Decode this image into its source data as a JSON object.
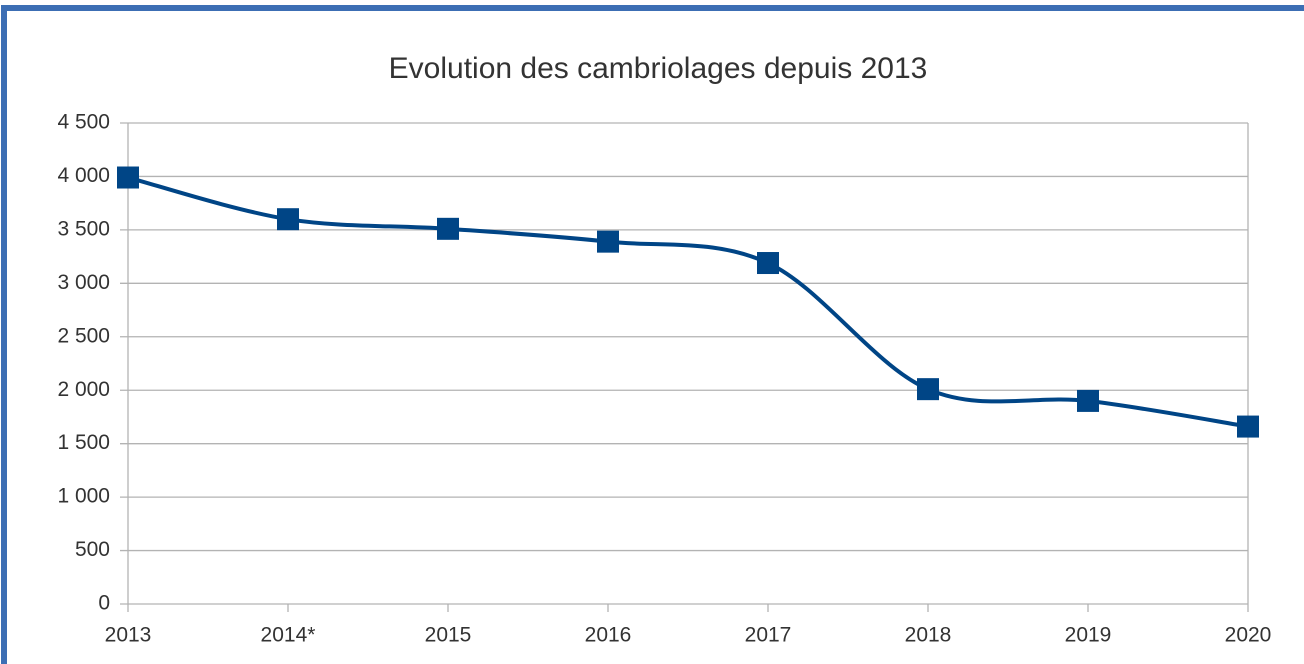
{
  "chart_data": {
    "type": "line",
    "title": "Evolution des cambriolages depuis 2013",
    "categories": [
      "2013",
      "2014*",
      "2015",
      "2016",
      "2017",
      "2018",
      "2019",
      "2020"
    ],
    "series": [
      {
        "name": "Cambriolages",
        "color": "#004586",
        "values": [
          3990,
          3600,
          3510,
          3390,
          3190,
          2010,
          1900,
          1660
        ]
      }
    ],
    "ylim": [
      0,
      4500
    ],
    "yticks": [
      0,
      500,
      {
        "value": 1000,
        "label": "1 000"
      },
      {
        "value": 1500,
        "label": "1 500"
      },
      {
        "value": 2000,
        "label": "2 000"
      },
      {
        "value": 2500,
        "label": "2 500"
      },
      {
        "value": 3000,
        "label": "3 000"
      },
      {
        "value": 3500,
        "label": "3 500"
      },
      {
        "value": 4000,
        "label": "4 000"
      },
      {
        "value": 4500,
        "label": "4 500"
      }
    ],
    "grid": true,
    "smooth": true
  }
}
